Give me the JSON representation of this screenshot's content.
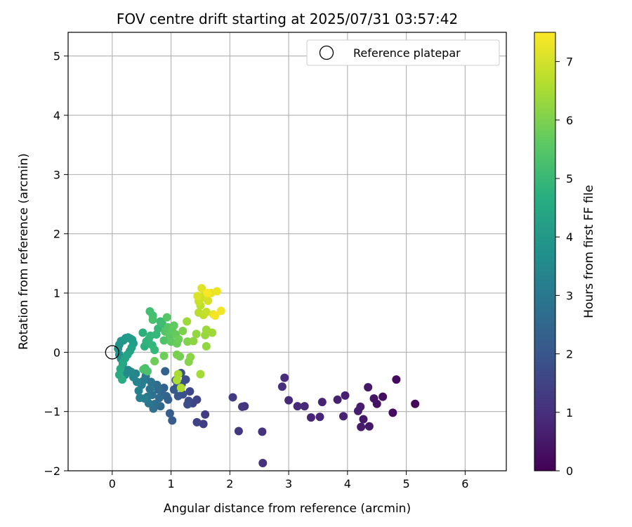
{
  "chart_data": {
    "type": "scatter",
    "title": "FOV centre drift starting at 2025/07/31 03:57:42",
    "xlabel": "Angular distance from reference (arcmin)",
    "ylabel": "Rotation from reference (arcmin)",
    "xlim": [
      -0.75,
      6.7
    ],
    "ylim": [
      -2.0,
      5.4
    ],
    "xticks": [
      0,
      1,
      2,
      3,
      4,
      5,
      6
    ],
    "yticks": [
      -2,
      -1,
      0,
      1,
      2,
      3,
      4,
      5
    ],
    "grid": true,
    "legend": {
      "position": "top-right",
      "entries": [
        "Reference platepar"
      ]
    },
    "reference_point": {
      "name": "Reference platepar",
      "x": 0,
      "y": 0
    },
    "colorbar": {
      "label": "Hours from first FF file",
      "colormap": "viridis",
      "range": [
        0,
        7.5
      ],
      "ticks": [
        0,
        1,
        2,
        3,
        4,
        5,
        6,
        7
      ]
    },
    "series": [
      {
        "name": "Hours from first FF file",
        "points": [
          {
            "x": 5.15,
            "y": -0.87,
            "c": 0.1
          },
          {
            "x": 4.83,
            "y": -0.46,
            "c": 0.2
          },
          {
            "x": 4.77,
            "y": -1.02,
            "c": 0.25
          },
          {
            "x": 4.6,
            "y": -0.75,
            "c": 0.3
          },
          {
            "x": 4.5,
            "y": -0.87,
            "c": 0.35
          },
          {
            "x": 4.45,
            "y": -0.78,
            "c": 0.4
          },
          {
            "x": 4.35,
            "y": -0.59,
            "c": 0.45
          },
          {
            "x": 4.37,
            "y": -1.25,
            "c": 0.5
          },
          {
            "x": 4.27,
            "y": -1.13,
            "c": 0.5
          },
          {
            "x": 4.23,
            "y": -1.26,
            "c": 0.55
          },
          {
            "x": 4.22,
            "y": -0.92,
            "c": 0.6
          },
          {
            "x": 4.18,
            "y": -0.99,
            "c": 0.6
          },
          {
            "x": 3.96,
            "y": -0.73,
            "c": 0.65
          },
          {
            "x": 3.93,
            "y": -1.08,
            "c": 0.7
          },
          {
            "x": 3.83,
            "y": -0.8,
            "c": 0.7
          },
          {
            "x": 3.57,
            "y": -0.84,
            "c": 0.75
          },
          {
            "x": 3.53,
            "y": -1.09,
            "c": 0.8
          },
          {
            "x": 3.38,
            "y": -1.1,
            "c": 0.8
          },
          {
            "x": 3.27,
            "y": -0.91,
            "c": 0.85
          },
          {
            "x": 3.15,
            "y": -0.91,
            "c": 0.9
          },
          {
            "x": 3.0,
            "y": -0.81,
            "c": 0.9
          },
          {
            "x": 2.93,
            "y": -0.43,
            "c": 0.95
          },
          {
            "x": 2.89,
            "y": -0.58,
            "c": 1.0
          },
          {
            "x": 2.56,
            "y": -1.87,
            "c": 1.05
          },
          {
            "x": 2.55,
            "y": -1.34,
            "c": 1.1
          },
          {
            "x": 2.25,
            "y": -0.91,
            "c": 1.15
          },
          {
            "x": 2.21,
            "y": -0.92,
            "c": 1.2
          },
          {
            "x": 2.15,
            "y": -1.33,
            "c": 1.25
          },
          {
            "x": 2.05,
            "y": -0.76,
            "c": 1.3
          },
          {
            "x": 1.58,
            "y": -1.05,
            "c": 1.35
          },
          {
            "x": 1.55,
            "y": -1.21,
            "c": 1.4
          },
          {
            "x": 1.44,
            "y": -1.18,
            "c": 1.45
          },
          {
            "x": 1.44,
            "y": -0.8,
            "c": 1.5
          },
          {
            "x": 1.37,
            "y": -0.86,
            "c": 1.55
          },
          {
            "x": 1.32,
            "y": -0.66,
            "c": 1.6
          },
          {
            "x": 1.3,
            "y": -0.82,
            "c": 1.7
          },
          {
            "x": 1.28,
            "y": -0.88,
            "c": 1.75
          },
          {
            "x": 1.25,
            "y": -0.46,
            "c": 1.8
          },
          {
            "x": 1.2,
            "y": -0.71,
            "c": 1.85
          },
          {
            "x": 1.18,
            "y": -0.54,
            "c": 1.9
          },
          {
            "x": 1.17,
            "y": -0.35,
            "c": 1.95
          },
          {
            "x": 1.12,
            "y": -0.74,
            "c": 2.0
          },
          {
            "x": 1.1,
            "y": -0.58,
            "c": 2.05
          },
          {
            "x": 1.08,
            "y": -0.47,
            "c": 2.1
          },
          {
            "x": 1.05,
            "y": -0.63,
            "c": 2.1
          },
          {
            "x": 1.02,
            "y": -1.15,
            "c": 2.15
          },
          {
            "x": 0.98,
            "y": -1.03,
            "c": 2.2
          },
          {
            "x": 0.95,
            "y": -0.8,
            "c": 2.25
          },
          {
            "x": 0.92,
            "y": -0.74,
            "c": 2.3
          },
          {
            "x": 0.9,
            "y": -0.32,
            "c": 2.35
          },
          {
            "x": 0.88,
            "y": -0.6,
            "c": 2.4
          },
          {
            "x": 0.85,
            "y": -0.71,
            "c": 2.45
          },
          {
            "x": 0.82,
            "y": -0.91,
            "c": 2.5
          },
          {
            "x": 0.8,
            "y": -0.77,
            "c": 2.55
          },
          {
            "x": 0.78,
            "y": -0.63,
            "c": 2.6
          },
          {
            "x": 0.76,
            "y": -0.55,
            "c": 2.65
          },
          {
            "x": 0.73,
            "y": -0.87,
            "c": 2.7
          },
          {
            "x": 0.7,
            "y": -0.95,
            "c": 2.75
          },
          {
            "x": 0.68,
            "y": -0.72,
            "c": 2.8
          },
          {
            "x": 0.66,
            "y": -0.5,
            "c": 2.85
          },
          {
            "x": 0.64,
            "y": -0.62,
            "c": 2.9
          },
          {
            "x": 0.62,
            "y": -0.86,
            "c": 2.95
          },
          {
            "x": 0.6,
            "y": -0.75,
            "c": 3.0
          },
          {
            "x": 0.57,
            "y": -0.4,
            "c": 3.05
          },
          {
            "x": 0.55,
            "y": -0.78,
            "c": 3.1
          },
          {
            "x": 0.53,
            "y": -0.48,
            "c": 3.15
          },
          {
            "x": 0.5,
            "y": -0.55,
            "c": 3.2
          },
          {
            "x": 0.47,
            "y": -0.77,
            "c": 3.25
          },
          {
            "x": 0.45,
            "y": -0.65,
            "c": 3.3
          },
          {
            "x": 0.42,
            "y": -0.5,
            "c": 3.35
          },
          {
            "x": 0.4,
            "y": -0.36,
            "c": 3.4
          },
          {
            "x": 0.36,
            "y": -0.42,
            "c": 3.45
          },
          {
            "x": 0.32,
            "y": -0.33,
            "c": 3.5
          },
          {
            "x": 0.27,
            "y": -0.3,
            "c": 3.55
          },
          {
            "x": 0.22,
            "y": -0.38,
            "c": 3.6
          },
          {
            "x": 0.18,
            "y": -0.2,
            "c": 3.65
          },
          {
            "x": 0.15,
            "y": -0.11,
            "c": 3.7
          },
          {
            "x": 0.12,
            "y": -0.04,
            "c": 3.75
          },
          {
            "x": 0.1,
            "y": 0.06,
            "c": 3.8
          },
          {
            "x": 0.12,
            "y": 0.13,
            "c": 3.85
          },
          {
            "x": 0.15,
            "y": 0.19,
            "c": 3.9
          },
          {
            "x": 0.19,
            "y": 0.2,
            "c": 3.95
          },
          {
            "x": 0.23,
            "y": 0.24,
            "c": 4.0
          },
          {
            "x": 0.27,
            "y": 0.25,
            "c": 4.05
          },
          {
            "x": 0.31,
            "y": 0.23,
            "c": 4.1
          },
          {
            "x": 0.34,
            "y": 0.21,
            "c": 4.15
          },
          {
            "x": 0.36,
            "y": 0.15,
            "c": 4.2
          },
          {
            "x": 0.33,
            "y": 0.08,
            "c": 4.25
          },
          {
            "x": 0.3,
            "y": 0.02,
            "c": 4.3
          },
          {
            "x": 0.26,
            "y": -0.04,
            "c": 4.35
          },
          {
            "x": 0.22,
            "y": -0.1,
            "c": 4.4
          },
          {
            "x": 0.18,
            "y": -0.18,
            "c": 4.45
          },
          {
            "x": 0.14,
            "y": -0.28,
            "c": 4.5
          },
          {
            "x": 0.12,
            "y": -0.38,
            "c": 4.55
          },
          {
            "x": 0.17,
            "y": -0.46,
            "c": 4.6
          },
          {
            "x": 0.52,
            "y": 0.33,
            "c": 4.7
          },
          {
            "x": 0.55,
            "y": 0.1,
            "c": 4.75
          },
          {
            "x": 0.58,
            "y": 0.18,
            "c": 4.8
          },
          {
            "x": 0.62,
            "y": 0.22,
            "c": 4.85
          },
          {
            "x": 0.65,
            "y": 0.28,
            "c": 4.9
          },
          {
            "x": 0.68,
            "y": 0.12,
            "c": 4.95
          },
          {
            "x": 0.72,
            "y": 0.04,
            "c": 5.0
          },
          {
            "x": 0.75,
            "y": 0.3,
            "c": 5.0
          },
          {
            "x": 0.78,
            "y": 0.4,
            "c": 5.05
          },
          {
            "x": 0.82,
            "y": 0.52,
            "c": 5.1
          },
          {
            "x": 0.85,
            "y": 0.48,
            "c": 5.15
          },
          {
            "x": 0.64,
            "y": 0.69,
            "c": 5.2
          },
          {
            "x": 0.69,
            "y": 0.62,
            "c": 5.25
          },
          {
            "x": 0.69,
            "y": 0.55,
            "c": 5.3
          },
          {
            "x": 0.56,
            "y": -0.27,
            "c": 5.3
          },
          {
            "x": 0.53,
            "y": -0.29,
            "c": 5.35
          },
          {
            "x": 0.6,
            "y": -0.32,
            "c": 5.35
          },
          {
            "x": 0.88,
            "y": 0.2,
            "c": 5.4
          },
          {
            "x": 0.9,
            "y": 0.35,
            "c": 5.45
          },
          {
            "x": 0.93,
            "y": 0.59,
            "c": 5.5
          },
          {
            "x": 0.95,
            "y": 0.42,
            "c": 5.5
          },
          {
            "x": 0.98,
            "y": 0.28,
            "c": 5.55
          },
          {
            "x": 1.0,
            "y": 0.18,
            "c": 5.6
          },
          {
            "x": 1.02,
            "y": 0.36,
            "c": 5.6
          },
          {
            "x": 1.05,
            "y": 0.45,
            "c": 5.65
          },
          {
            "x": 1.08,
            "y": 0.3,
            "c": 5.7
          },
          {
            "x": 1.1,
            "y": 0.15,
            "c": 5.75
          },
          {
            "x": 1.13,
            "y": 0.22,
            "c": 5.8
          },
          {
            "x": 0.72,
            "y": -0.15,
            "c": 5.8
          },
          {
            "x": 0.88,
            "y": -0.06,
            "c": 5.85
          },
          {
            "x": 1.15,
            "y": -0.07,
            "c": 5.9
          },
          {
            "x": 1.1,
            "y": -0.04,
            "c": 5.95
          },
          {
            "x": 1.2,
            "y": 0.36,
            "c": 6.0
          },
          {
            "x": 1.28,
            "y": 0.18,
            "c": 6.05
          },
          {
            "x": 1.3,
            "y": -0.16,
            "c": 6.1
          },
          {
            "x": 1.33,
            "y": -0.08,
            "c": 6.15
          },
          {
            "x": 1.38,
            "y": 0.19,
            "c": 6.2
          },
          {
            "x": 1.43,
            "y": 0.31,
            "c": 6.25
          },
          {
            "x": 1.6,
            "y": 0.1,
            "c": 6.25
          },
          {
            "x": 1.58,
            "y": 0.29,
            "c": 6.3
          },
          {
            "x": 1.6,
            "y": 0.38,
            "c": 6.35
          },
          {
            "x": 1.7,
            "y": 0.33,
            "c": 6.4
          },
          {
            "x": 1.27,
            "y": 0.52,
            "c": 6.4
          },
          {
            "x": 1.5,
            "y": -0.37,
            "c": 6.45
          },
          {
            "x": 1.12,
            "y": -0.37,
            "c": 6.5
          },
          {
            "x": 1.1,
            "y": -0.47,
            "c": 6.55
          },
          {
            "x": 1.17,
            "y": -0.6,
            "c": 6.6
          },
          {
            "x": 1.47,
            "y": 0.67,
            "c": 6.7
          },
          {
            "x": 1.5,
            "y": 0.79,
            "c": 6.75
          },
          {
            "x": 1.55,
            "y": 0.63,
            "c": 6.8
          },
          {
            "x": 1.6,
            "y": 0.68,
            "c": 6.85
          },
          {
            "x": 1.47,
            "y": 0.86,
            "c": 6.9
          },
          {
            "x": 1.53,
            "y": 0.92,
            "c": 6.95
          },
          {
            "x": 1.58,
            "y": 0.99,
            "c": 7.0
          },
          {
            "x": 1.63,
            "y": 0.87,
            "c": 7.05
          },
          {
            "x": 1.45,
            "y": 0.95,
            "c": 7.1
          },
          {
            "x": 1.52,
            "y": 1.08,
            "c": 7.15
          },
          {
            "x": 1.68,
            "y": 1.0,
            "c": 7.2
          },
          {
            "x": 1.72,
            "y": 0.64,
            "c": 7.25
          },
          {
            "x": 1.78,
            "y": 1.03,
            "c": 7.3
          },
          {
            "x": 1.85,
            "y": 0.7,
            "c": 7.35
          },
          {
            "x": 1.75,
            "y": 0.62,
            "c": 7.4
          },
          {
            "x": 1.62,
            "y": 1.0,
            "c": 7.45
          }
        ]
      }
    ]
  }
}
